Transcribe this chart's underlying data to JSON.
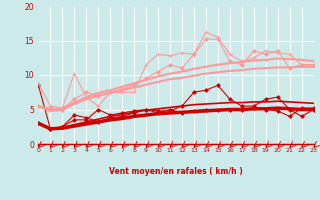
{
  "title": "",
  "xlabel": "Vent moyen/en rafales ( km/h )",
  "background_color": "#cceaea",
  "grid_color": "#ffffff",
  "x_values": [
    0,
    1,
    2,
    3,
    4,
    5,
    6,
    7,
    8,
    9,
    10,
    11,
    12,
    13,
    14,
    15,
    16,
    17,
    18,
    19,
    20,
    21,
    22,
    23
  ],
  "ylim": [
    0,
    20
  ],
  "xlim": [
    0,
    23
  ],
  "lines": [
    {
      "y": [
        3.0,
        2.2,
        2.3,
        2.6,
        2.9,
        3.2,
        3.5,
        3.7,
        4.0,
        4.2,
        4.4,
        4.5,
        4.6,
        4.7,
        4.8,
        4.9,
        5.0,
        5.0,
        5.1,
        5.1,
        5.2,
        5.1,
        5.0,
        5.0
      ],
      "color": "#cc0000",
      "lw": 2.5,
      "marker": null,
      "ms": 0
    },
    {
      "y": [
        3.0,
        2.2,
        2.4,
        2.8,
        3.2,
        3.6,
        4.0,
        4.3,
        4.6,
        4.9,
        5.1,
        5.3,
        5.5,
        5.7,
        5.8,
        5.9,
        6.0,
        6.0,
        6.1,
        6.1,
        6.2,
        6.1,
        6.0,
        5.9
      ],
      "color": "#cc0000",
      "lw": 1.2,
      "marker": null,
      "ms": 0
    },
    {
      "y": [
        8.5,
        2.2,
        2.5,
        4.2,
        3.8,
        3.2,
        3.8,
        4.0,
        4.5,
        5.0,
        4.5,
        5.0,
        4.5,
        4.8,
        5.0,
        5.0,
        5.0,
        5.0,
        5.2,
        5.0,
        4.8,
        4.0,
        5.2,
        5.2
      ],
      "color": "#cc0000",
      "lw": 0.8,
      "marker": "D",
      "ms": 2.0
    },
    {
      "y": [
        3.0,
        2.2,
        2.5,
        3.5,
        3.5,
        5.0,
        4.2,
        4.5,
        4.8,
        5.0,
        4.8,
        4.8,
        5.5,
        7.5,
        7.8,
        8.5,
        6.5,
        5.5,
        5.5,
        6.5,
        6.8,
        5.0,
        4.0,
        5.0
      ],
      "color": "#cc0000",
      "lw": 0.8,
      "marker": "D",
      "ms": 2.0
    },
    {
      "y": [
        5.5,
        4.8,
        5.0,
        5.8,
        6.5,
        7.0,
        7.4,
        7.8,
        8.2,
        8.6,
        9.0,
        9.4,
        9.6,
        9.9,
        10.2,
        10.4,
        10.6,
        10.7,
        10.9,
        11.0,
        11.1,
        11.1,
        11.2,
        11.2
      ],
      "color": "#ff9999",
      "lw": 1.5,
      "marker": null,
      "ms": 0
    },
    {
      "y": [
        5.5,
        4.8,
        5.2,
        6.0,
        6.8,
        7.4,
        7.8,
        8.3,
        8.8,
        9.3,
        9.8,
        10.2,
        10.5,
        10.9,
        11.2,
        11.5,
        11.7,
        11.9,
        12.1,
        12.2,
        12.4,
        12.3,
        12.2,
        12.0
      ],
      "color": "#ff9999",
      "lw": 1.5,
      "marker": null,
      "ms": 0
    },
    {
      "y": [
        5.5,
        5.2,
        5.0,
        6.5,
        7.5,
        7.0,
        7.5,
        8.0,
        8.5,
        9.5,
        10.5,
        11.5,
        11.0,
        13.0,
        15.2,
        15.2,
        12.0,
        11.5,
        13.5,
        13.0,
        13.5,
        11.0,
        11.5,
        11.5
      ],
      "color": "#ff9999",
      "lw": 0.8,
      "marker": "D",
      "ms": 2.0
    },
    {
      "y": [
        8.8,
        5.5,
        5.2,
        10.2,
        6.8,
        5.5,
        7.5,
        7.5,
        7.5,
        11.5,
        13.0,
        12.8,
        13.2,
        13.0,
        16.2,
        15.5,
        13.0,
        12.0,
        12.5,
        13.5,
        13.2,
        13.0,
        11.5,
        11.5
      ],
      "color": "#ff9999",
      "lw": 0.8,
      "marker": "+",
      "ms": 3.5
    }
  ],
  "yticks": [
    0,
    5,
    10,
    15,
    20
  ],
  "xticks": [
    0,
    1,
    2,
    3,
    4,
    5,
    6,
    7,
    8,
    9,
    10,
    11,
    12,
    13,
    14,
    15,
    16,
    17,
    18,
    19,
    20,
    21,
    22,
    23
  ]
}
